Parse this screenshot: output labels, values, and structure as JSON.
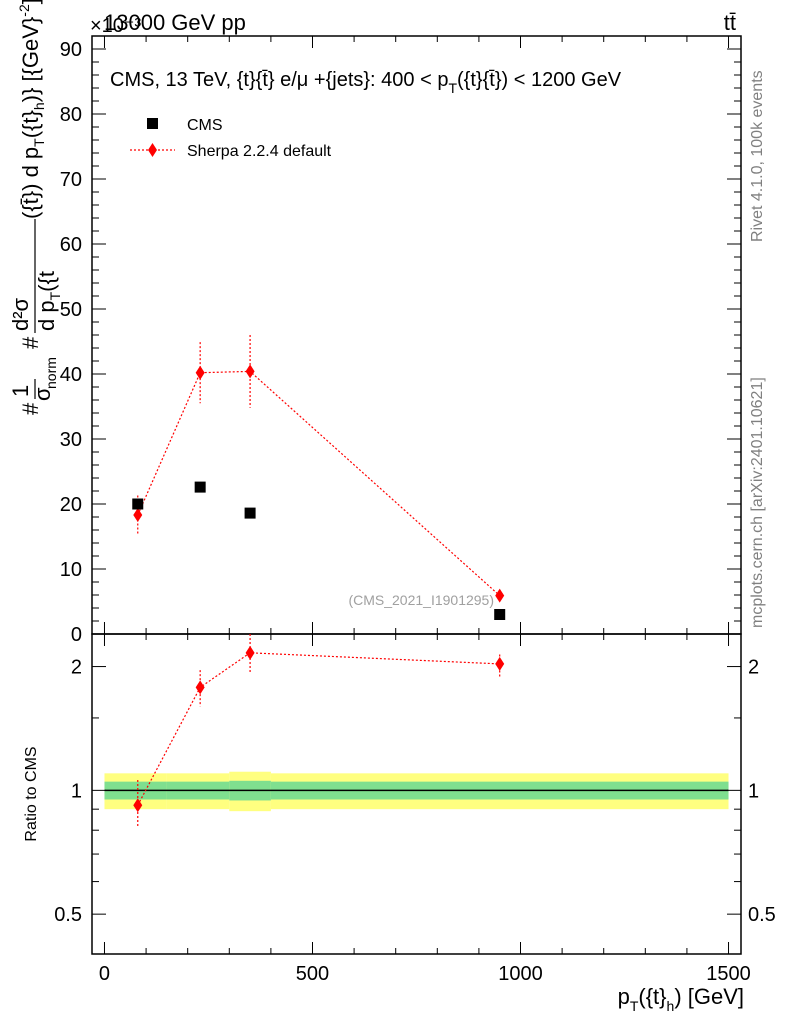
{
  "header": {
    "beam": "13000 GeV pp",
    "process": "tt̄",
    "scale_factor": "×10⁻³"
  },
  "side_labels": {
    "rivet": "Rivet 4.1.0,  100k events",
    "mcplots": "mcplots.cern.ch [arXiv:2401.10621]"
  },
  "chart_data": {
    "type": "scatter",
    "title": "CMS, 13 TeV, {t}{t̄} e/μ +{jets}: 400 <  p_T({t}{t̄}) < 1200 GeV",
    "title_parts": {
      "lead": "CMS, 13 TeV, {t}{t̄} e/μ +{jets}: 400 <  p",
      "sub": "T",
      "tail": "({t}{t̄}) < 1200 GeV"
    },
    "analysis_id": "(CMS_2021_I1901295)",
    "xlabel": {
      "main": "p",
      "sub": "T",
      "mid": "({t}",
      "sub2": "h",
      "tail": ") [GeV]"
    },
    "ylabel": "#1/σ_norm # d²σ/d p_T({t}) d p_T({t}_h) [{GeV}⁻²]",
    "ylabel_parts": {
      "hash1": "#",
      "one": "1",
      "sigma": "σ",
      "norm": "norm",
      "hash2": "#",
      "d2sigma": "d²σ",
      "dpt_t": "d p",
      "dpt_t_sub": "T",
      "dpt_t_tail": "({t",
      "tail_a": "({t̄}) d p",
      "tail_sub": "T",
      "tail_b": "({t}",
      "tail_sub2": "h",
      "tail_c": ")} [{GeV}",
      "tail_exp": "-2",
      "tail_d": "]"
    },
    "x_range": [
      -30,
      1530
    ],
    "xticks": [
      0,
      500,
      1000,
      1500
    ],
    "xtick_labels": [
      "0",
      "500",
      "1000",
      "1500"
    ],
    "main_panel": {
      "y_range": [
        0,
        92
      ],
      "yticks": [
        0,
        10,
        20,
        30,
        40,
        50,
        60,
        70,
        80,
        90
      ],
      "ytick_labels": [
        "0",
        "10",
        "20",
        "30",
        "40",
        "50",
        "60",
        "70",
        "80",
        "90"
      ],
      "units": "×10⁻³"
    },
    "ratio_panel": {
      "ylabel": "Ratio to CMS",
      "y_range": [
        0.4,
        2.4
      ],
      "log": true,
      "yticks": [
        0.5,
        1,
        2
      ],
      "ytick_labels": [
        "0.5",
        "1",
        "2"
      ],
      "band_bins": [
        {
          "x0": 0,
          "x1": 150,
          "inner": 0.05,
          "outer": 0.1
        },
        {
          "x0": 150,
          "x1": 300,
          "inner": 0.05,
          "outer": 0.1
        },
        {
          "x0": 300,
          "x1": 400,
          "inner": 0.055,
          "outer": 0.11
        },
        {
          "x0": 400,
          "x1": 1500,
          "inner": 0.05,
          "outer": 0.1
        }
      ]
    },
    "legend": [
      {
        "name": "CMS",
        "marker": "square",
        "color": "#000000"
      },
      {
        "name": "Sherpa 2.2.4 default",
        "marker": "diamond",
        "color": "#ff0000"
      }
    ],
    "series": [
      {
        "name": "CMS",
        "color": "#000000",
        "points": [
          {
            "x": 80,
            "y": 20.0
          },
          {
            "x": 230,
            "y": 22.6
          },
          {
            "x": 350,
            "y": 18.6
          },
          {
            "x": 950,
            "y": 3.0
          }
        ]
      },
      {
        "name": "Sherpa 2.2.4 default",
        "color": "#ff0000",
        "points": [
          {
            "x": 80,
            "y": 18.3,
            "err": 3.0
          },
          {
            "x": 230,
            "y": 40.2,
            "err": 4.7
          },
          {
            "x": 350,
            "y": 40.4,
            "err": 5.6
          },
          {
            "x": 950,
            "y": 5.9,
            "err": 0.4
          }
        ],
        "ratio": [
          {
            "x": 80,
            "y": 0.92,
            "lo": 0.81,
            "hi": 1.06
          },
          {
            "x": 230,
            "y": 1.78,
            "lo": 1.6,
            "hi": 1.96
          },
          {
            "x": 350,
            "y": 2.16,
            "lo": 1.94,
            "hi": 2.4
          },
          {
            "x": 950,
            "y": 2.03,
            "lo": 1.89,
            "hi": 2.14
          }
        ]
      }
    ]
  }
}
